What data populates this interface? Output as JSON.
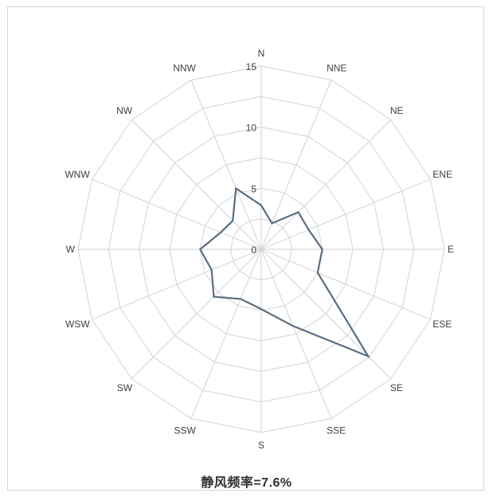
{
  "chart_data": {
    "type": "radar",
    "title": "",
    "categories": [
      "N",
      "NNE",
      "NE",
      "ENE",
      "E",
      "ESE",
      "SE",
      "SSE",
      "S",
      "SSW",
      "SW",
      "WSW",
      "W",
      "WNW",
      "NW",
      "NNW"
    ],
    "series": [
      {
        "values": [
          3.6,
          2.3,
          4.3,
          4.2,
          5.0,
          5.0,
          12.4,
          6.8,
          4.9,
          4.4,
          5.5,
          4.4,
          5.0,
          3.6,
          3.3,
          5.4
        ],
        "color": "#5a6e82"
      }
    ],
    "rlim": [
      0,
      15
    ],
    "rticks": [
      0,
      5,
      10,
      15
    ],
    "grid": true,
    "legend": "none"
  },
  "footer": {
    "calm_text": "静风频率=7.6%"
  },
  "colors": {
    "grid": "#d9d9d9",
    "series": "#5a6e82",
    "text": "#404040"
  }
}
